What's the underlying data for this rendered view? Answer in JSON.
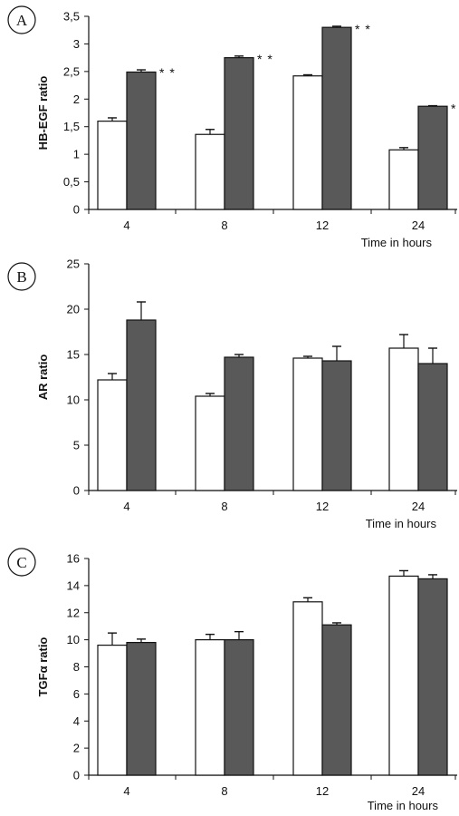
{
  "chart_data": [
    {
      "type": "bar",
      "panel_label": "A",
      "ylabel": "HB-EGF ratio",
      "xlabel": "Time in hours",
      "categories": [
        "4",
        "8",
        "12",
        "24"
      ],
      "yticks": [
        "0",
        "0,5",
        "1",
        "1,5",
        "2",
        "2,5",
        "3",
        "3,5"
      ],
      "ylim": [
        0,
        3.5
      ],
      "series": [
        {
          "values": [
            1.6,
            1.36,
            2.42,
            1.08
          ],
          "errors": [
            0.06,
            0.09,
            0.02,
            0.04
          ],
          "color": "#ffffff"
        },
        {
          "values": [
            2.49,
            2.75,
            3.3,
            1.87
          ],
          "errors": [
            0.04,
            0.03,
            0.02,
            0.01
          ],
          "color": "#595959"
        }
      ],
      "annotations": [
        "* *",
        "* *",
        "* *",
        "* *"
      ]
    },
    {
      "type": "bar",
      "panel_label": "B",
      "ylabel": "AR ratio",
      "xlabel": "Time in hours",
      "categories": [
        "4",
        "8",
        "12",
        "24"
      ],
      "yticks": [
        "0",
        "5",
        "10",
        "15",
        "20",
        "25"
      ],
      "ylim": [
        0,
        25
      ],
      "series": [
        {
          "values": [
            12.2,
            10.4,
            14.6,
            15.7
          ],
          "errors": [
            0.7,
            0.3,
            0.2,
            1.5
          ],
          "color": "#ffffff"
        },
        {
          "values": [
            18.8,
            14.7,
            14.3,
            14.0
          ],
          "errors": [
            2.0,
            0.3,
            1.6,
            1.7
          ],
          "color": "#595959"
        }
      ],
      "annotations": [
        "",
        "",
        "",
        ""
      ]
    },
    {
      "type": "bar",
      "panel_label": "C",
      "ylabel": "TGFα ratio",
      "xlabel": "Time in hours",
      "categories": [
        "4",
        "8",
        "12",
        "24"
      ],
      "yticks": [
        "0",
        "2",
        "4",
        "6",
        "8",
        "10",
        "12",
        "14",
        "16"
      ],
      "ylim": [
        0,
        16
      ],
      "series": [
        {
          "values": [
            9.6,
            10.0,
            12.8,
            14.7
          ],
          "errors": [
            0.9,
            0.4,
            0.3,
            0.4
          ],
          "color": "#ffffff"
        },
        {
          "values": [
            9.8,
            10.0,
            11.1,
            14.5
          ],
          "errors": [
            0.25,
            0.6,
            0.15,
            0.3
          ],
          "color": "#595959"
        }
      ],
      "annotations": [
        "",
        "",
        "",
        ""
      ]
    }
  ]
}
